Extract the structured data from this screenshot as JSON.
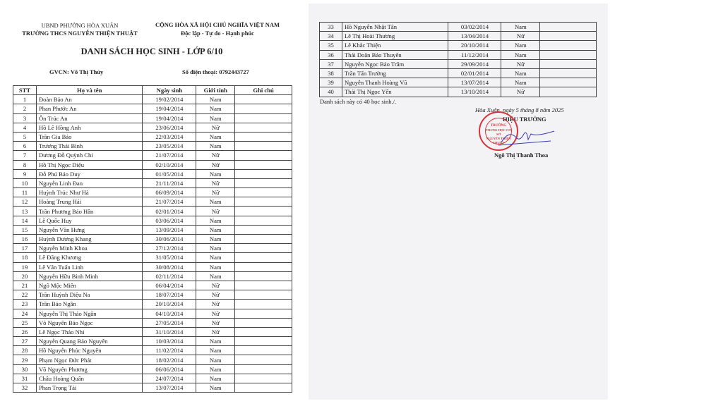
{
  "header": {
    "left_line1": "UBND PHƯỜNG HÒA XUÂN",
    "left_line2": "TRƯỜNG THCS NGUYỄN THIỆN THUẬT",
    "right_line1": "CỘNG HÒA XÃ HỘI CHỦ NGHĨA VIỆT NAM",
    "right_line2": "Độc lập - Tự do - Hạnh phúc"
  },
  "title": "DANH SÁCH HỌC SINH - LỚP 6/10",
  "teacher": "GVCN: Võ Thị Thủy",
  "phone": "Số điện thoại: 0792443727",
  "columns": [
    "STT",
    "Họ và tên",
    "Ngày sinh",
    "Giới tính",
    "Ghi chú"
  ],
  "students": [
    [
      "1",
      "Đoàn Bảo An",
      "19/02/2014",
      "Nam"
    ],
    [
      "2",
      "Phan Phước An",
      "19/04/2014",
      "Nam"
    ],
    [
      "3",
      "Ôn Trúc An",
      "19/04/2014",
      "Nam"
    ],
    [
      "4",
      "Hồ Lê Hồng Anh",
      "23/06/2014",
      "Nữ"
    ],
    [
      "5",
      "Trần Gia Bảo",
      "22/03/2014",
      "Nam"
    ],
    [
      "6",
      "Trương Thái Bình",
      "23/05/2014",
      "Nam"
    ],
    [
      "7",
      "Dương Đỗ Quỳnh Chi",
      "21/07/2014",
      "Nữ"
    ],
    [
      "8",
      "Hồ Thị Ngọc Diệu",
      "02/10/2014",
      "Nữ"
    ],
    [
      "9",
      "Đỗ Phú Bảo Duy",
      "01/05/2014",
      "Nam"
    ],
    [
      "10",
      "Nguyễn Linh Đan",
      "21/11/2014",
      "Nữ"
    ],
    [
      "11",
      "Huỳnh Trúc Như Hà",
      "06/09/2014",
      "Nữ"
    ],
    [
      "12",
      "Hoàng Trung Hải",
      "21/07/2014",
      "Nam"
    ],
    [
      "13",
      "Trần Phương Bảo Hân",
      "02/01/2014",
      "Nữ"
    ],
    [
      "14",
      "Lê Quốc Huy",
      "03/06/2014",
      "Nam"
    ],
    [
      "15",
      "Nguyễn Văn Hưng",
      "13/09/2014",
      "Nam"
    ],
    [
      "16",
      "Huỳnh Dương Khang",
      "30/06/2014",
      "Nam"
    ],
    [
      "17",
      "Nguyễn Minh Khoa",
      "27/12/2014",
      "Nam"
    ],
    [
      "18",
      "Lê Đăng Khương",
      "31/05/2014",
      "Nam"
    ],
    [
      "19",
      "Lê Văn Tuấn Linh",
      "30/08/2014",
      "Nam"
    ],
    [
      "20",
      "Nguyễn Hữu Bình Minh",
      "02/11/2014",
      "Nam"
    ],
    [
      "21",
      "Ngô Mộc Miên",
      "06/04/2014",
      "Nữ"
    ],
    [
      "22",
      "Trần Huỳnh Diệu Na",
      "18/07/2014",
      "Nữ"
    ],
    [
      "23",
      "Trần Bảo Ngân",
      "20/10/2014",
      "Nữ"
    ],
    [
      "24",
      "Nguyễn Thị Thảo Ngân",
      "04/10/2014",
      "Nữ"
    ],
    [
      "25",
      "Võ Nguyên Bảo Ngọc",
      "27/05/2014",
      "Nữ"
    ],
    [
      "26",
      "Lê Ngọc Thảo Nhi",
      "31/10/2014",
      "Nữ"
    ],
    [
      "27",
      "Nguyễn Quang Bảo Nguyên",
      "10/03/2014",
      "Nam"
    ],
    [
      "28",
      "Hồ Nguyễn Phúc Nguyên",
      "11/02/2014",
      "Nam"
    ],
    [
      "29",
      "Phạm Ngọc Đức Phát",
      "18/02/2014",
      "Nam"
    ],
    [
      "30",
      "Võ Nguyên Phương",
      "06/06/2014",
      "Nam"
    ],
    [
      "31",
      "Châu Hoàng Quân",
      "24/07/2014",
      "Nam"
    ],
    [
      "32",
      "Phan Trọng Tài",
      "13/07/2014",
      "Nam"
    ],
    [
      "33",
      "Hồ Nguyễn Nhật Tân",
      "03/02/2014",
      "Nam"
    ],
    [
      "34",
      "Lê Thị Hoài Thương",
      "13/04/2014",
      "Nữ"
    ],
    [
      "35",
      "Lê Khắc Thiện",
      "20/10/2014",
      "Nam"
    ],
    [
      "36",
      "Thái Doãn Bảo Thuyên",
      "11/12/2014",
      "Nam"
    ],
    [
      "37",
      "Nguyễn Ngọc Bảo Trâm",
      "29/09/2014",
      "Nữ"
    ],
    [
      "38",
      "Trần Tấn Trường",
      "02/01/2014",
      "Nam"
    ],
    [
      "39",
      "Nguyễn Thanh Hoàng Vũ",
      "13/07/2014",
      "Nam"
    ],
    [
      "40",
      "Thái Thị Ngọc Yến",
      "13/10/2014",
      "Nữ"
    ]
  ],
  "footer": {
    "summary": "Danh sách này có 40 học sinh./.",
    "date_line": "Hòa Xuân, ngày 5 tháng 8 năm 2025",
    "role": "HIỆU TRƯỞNG",
    "signer": "Ngô Thị Thanh Thoa"
  },
  "stamp": {
    "text_line1": "TRƯỜNG",
    "text_line2": "TRUNG HỌC CƠ SỞ",
    "text_line3": "NGUYỄN THIỆN THUẬT",
    "color": "#d8323c"
  },
  "signature_color": "#3a3ab0"
}
